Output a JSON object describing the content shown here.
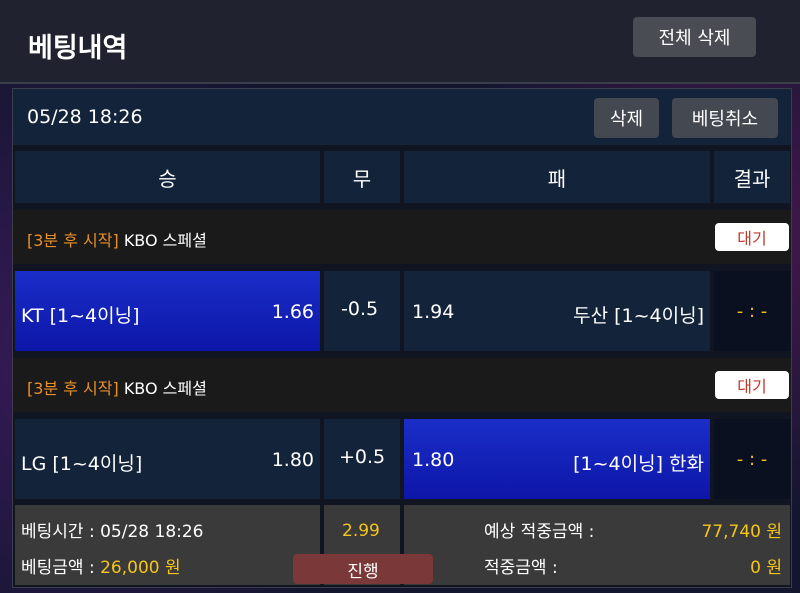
{
  "header": {
    "title": "베팅내역",
    "delete_all": "전체 삭제"
  },
  "bet": {
    "date": "05/28 18:26",
    "delete": "삭제",
    "cancel": "베팅취소",
    "columns": [
      "승",
      "무",
      "패",
      "결과"
    ],
    "games": [
      {
        "start": "[3분 후 시작]",
        "league": "KBO 스페셜",
        "status": "대기",
        "home": "KT [1~4이닝]",
        "home_odds": "1.66",
        "handicap": "-0.5",
        "away_odds": "1.94",
        "away": "두산 [1~4이닝]",
        "result": "- : -",
        "selected": "home"
      },
      {
        "start": "[3분 후 시작]",
        "league": "KBO 스페셜",
        "status": "대기",
        "home": "LG [1~4이닝]",
        "home_odds": "1.80",
        "handicap": "+0.5",
        "away_odds": "1.80",
        "away": "[1~4이닝] 한화",
        "result": "- : -",
        "selected": "away"
      }
    ],
    "footer": {
      "time_label": "베팅시간 :",
      "time": "05/28 18:26",
      "amount_label": "베팅금액 :",
      "amount": "26,000 원",
      "total_odds": "2.99",
      "state": "진행",
      "expected_label": "예상 적중금액 :",
      "expected": "77,740 원",
      "win_label": "적중금액 :",
      "win": "0 원"
    }
  },
  "colors": {
    "accent_yellow": "#f5c518",
    "selected_blue": "#1a2ec8",
    "start_orange": "#e8902a"
  }
}
